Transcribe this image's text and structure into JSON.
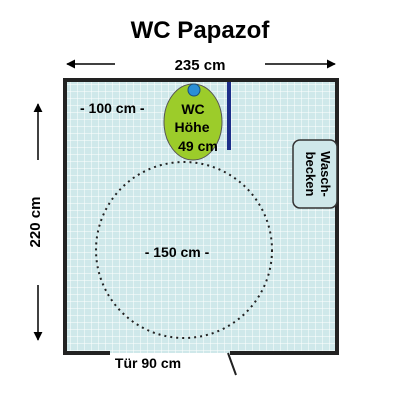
{
  "title": "WC Papazof",
  "dimensions": {
    "width_label": "235 cm",
    "height_label": "220 cm",
    "wall_left_label": "- 100 cm -",
    "turning_circle_label": "- 150 cm -",
    "door_label": "Tür 90 cm"
  },
  "fixtures": {
    "wc_label_line1": "WC",
    "wc_label_line2": "Höhe",
    "wc_label_line3": "49 cm",
    "sink_label_line1": "Wasch-",
    "sink_label_line2": "becken"
  },
  "colors": {
    "floor_tiles": "#cfe8ea",
    "grid_lines": "#ffffff",
    "wall": "#222222",
    "wc": "#9ccc2a",
    "flush_button": "#2a8fd6",
    "grab_bar": "#1e2f8a",
    "sink": "#cfe8ea"
  }
}
